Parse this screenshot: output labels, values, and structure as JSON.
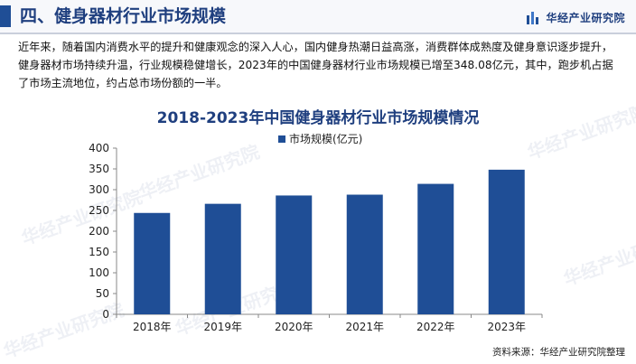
{
  "header": {
    "title": "四、健身器材行业市场规模",
    "brand_name": "华经产业研究院",
    "brand_icon": "bar-logo-icon",
    "accent_color": "#1f4e96"
  },
  "body_text": "近年来，随着国内消费水平的提升和健康观念的深入人心，国内健身热潮日益高涨，消费群体成熟度及健身意识逐步提升，健身器材市场持续升温，行业规模稳健增长，2023年的中国健身器材行业市场规模已增至348.08亿元，其中，跑步机占据了市场主流地位，约占总市场份额的一半。",
  "watermark": "华经产业研究院",
  "source": "资料来源：华经产业研究院整理",
  "chart_data": {
    "type": "bar",
    "title": "2018-2023年中国健身器材行业市场规模情况",
    "categories": [
      "2018年",
      "2019年",
      "2020年",
      "2021年",
      "2022年",
      "2023年"
    ],
    "series": [
      {
        "name": "市场规模(亿元)",
        "values": [
          244,
          266,
          286,
          288,
          314,
          348.08
        ],
        "color": "#1f4e96"
      }
    ],
    "ylim": [
      0,
      400
    ],
    "yticks": [
      "0",
      "50",
      "100",
      "150",
      "200",
      "250",
      "300",
      "350",
      "400"
    ],
    "grid": false,
    "legend": "top-center"
  }
}
